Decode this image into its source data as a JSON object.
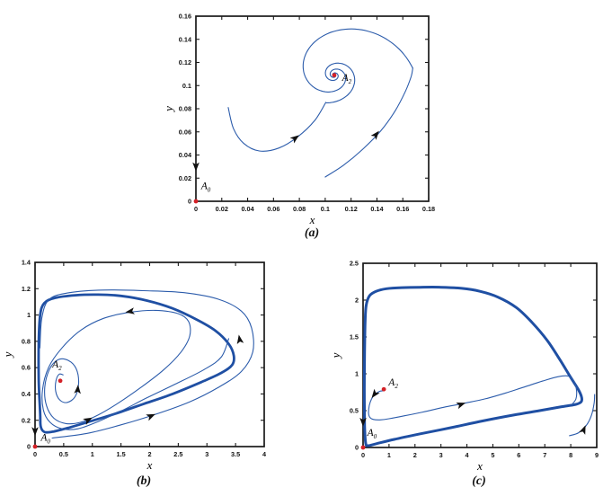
{
  "figure": {
    "background": "#ffffff"
  },
  "colors": {
    "trajectory": "#2c5cab",
    "limit_cycle": "#1f4fa3",
    "axis": "#1a1a1a",
    "tick_text": "#111111",
    "equilibrium_dot": "#d42127",
    "arrow": "#111111"
  },
  "captions": {
    "a": "(a)",
    "b": "(b)",
    "c": "(c)"
  },
  "chart_data": [
    {
      "id": "a",
      "type": "line",
      "caption": "(a)",
      "xlabel": "x",
      "ylabel": "y",
      "xlim": [
        0,
        0.18
      ],
      "ylim": [
        0,
        0.16
      ],
      "xticks": [
        0,
        0.02,
        0.04,
        0.06,
        0.08,
        0.1,
        0.12,
        0.14,
        0.16,
        0.18
      ],
      "xtick_labels": [
        "0",
        "0.02",
        "0.04",
        "0.06",
        "0.08",
        "0.1",
        "0.12",
        "0.14",
        "0.16",
        "0.18"
      ],
      "yticks": [
        0,
        0.02,
        0.04,
        0.06,
        0.08,
        0.1,
        0.12,
        0.14,
        0.16
      ],
      "ytick_labels": [
        "0",
        "0.02",
        "0.04",
        "0.06",
        "0.08",
        "0.1",
        "0.12",
        "0.14",
        "0.16"
      ],
      "equilibria": [
        {
          "label": "A",
          "sub": "2",
          "x": 0.107,
          "y": 0.109,
          "label_x": 0.113,
          "label_y": 0.104
        },
        {
          "label": "A",
          "sub": "0",
          "x": 0,
          "y": 0,
          "label_x": 0.004,
          "label_y": 0.0105
        }
      ],
      "trajectories": [
        {
          "kind": "points",
          "width": 1.1,
          "closed": false,
          "points": [
            [
              0.025,
              0.081
            ],
            [
              0.029,
              0.063
            ],
            [
              0.037,
              0.05
            ],
            [
              0.049,
              0.0435
            ],
            [
              0.064,
              0.046
            ],
            [
              0.079,
              0.056
            ],
            [
              0.092,
              0.07
            ],
            [
              0.1005,
              0.0855
            ]
          ]
        },
        {
          "kind": "spiral",
          "width": 1.1,
          "cx": 0.107,
          "cy": 0.109,
          "r0": 0.0247,
          "r1": 0.0012,
          "th0": -1.82,
          "th1": 9.6
        },
        {
          "kind": "points",
          "width": 1.1,
          "closed": false,
          "points": [
            [
              0.1,
              0.021
            ],
            [
              0.114,
              0.031
            ],
            [
              0.129,
              0.045
            ],
            [
              0.143,
              0.061
            ],
            [
              0.154,
              0.078
            ],
            [
              0.162,
              0.095
            ],
            [
              0.1665,
              0.108
            ],
            [
              0.1677,
              0.115
            ]
          ]
        },
        {
          "kind": "spiral",
          "width": 1.1,
          "cx": 0.107,
          "cy": 0.109,
          "r0": 0.061,
          "r1": 0.0015,
          "th0": 0.1,
          "th1": 11.6
        }
      ],
      "arrows": [
        {
          "x": 0.079,
          "y": 0.0565,
          "angle": 40
        },
        {
          "x": 0.141,
          "y": 0.06,
          "angle": 54
        },
        {
          "x": 0.0,
          "y": 0.027,
          "angle": 270
        }
      ]
    },
    {
      "id": "b",
      "type": "line",
      "caption": "(b)",
      "xlabel": "x",
      "ylabel": "y",
      "xlim": [
        0,
        4
      ],
      "ylim": [
        0,
        1.4
      ],
      "xticks": [
        0,
        0.5,
        1,
        1.5,
        2,
        2.5,
        3,
        3.5,
        4
      ],
      "xtick_labels": [
        "0",
        "0.5",
        "1",
        "1.5",
        "2",
        "2.5",
        "3",
        "3.5",
        "4"
      ],
      "yticks": [
        0,
        0.2,
        0.4,
        0.6,
        0.8,
        1,
        1.2,
        1.4
      ],
      "ytick_labels": [
        "0",
        "0.2",
        "0.4",
        "0.6",
        "0.8",
        "1",
        "1.2",
        "1.4"
      ],
      "equilibria": [
        {
          "label": "A",
          "sub": "2",
          "x": 0.44,
          "y": 0.5,
          "label_x": 0.3,
          "label_y": 0.6
        },
        {
          "label": "A",
          "sub": "0",
          "x": 0,
          "y": 0,
          "label_x": 0.1,
          "label_y": 0.045
        }
      ],
      "trajectories": [
        {
          "kind": "points",
          "width": 2.8,
          "closed": true,
          "points": [
            [
              0.09,
              0.25
            ],
            [
              0.065,
              0.5
            ],
            [
              0.065,
              0.8
            ],
            [
              0.09,
              1.0
            ],
            [
              0.16,
              1.09
            ],
            [
              0.35,
              1.13
            ],
            [
              0.7,
              1.15
            ],
            [
              1.1,
              1.155
            ],
            [
              1.5,
              1.145
            ],
            [
              1.95,
              1.11
            ],
            [
              2.4,
              1.05
            ],
            [
              2.8,
              0.97
            ],
            [
              3.15,
              0.88
            ],
            [
              3.38,
              0.78
            ],
            [
              3.47,
              0.69
            ],
            [
              3.44,
              0.62
            ],
            [
              3.25,
              0.56
            ],
            [
              2.9,
              0.49
            ],
            [
              2.4,
              0.4
            ],
            [
              1.9,
              0.325
            ],
            [
              1.4,
              0.25
            ],
            [
              0.95,
              0.19
            ],
            [
              0.6,
              0.145
            ],
            [
              0.33,
              0.115
            ],
            [
              0.17,
              0.11
            ],
            [
              0.1,
              0.15
            ]
          ]
        },
        {
          "kind": "points",
          "width": 1.1,
          "closed": false,
          "points": [
            [
              0.49,
              0.545
            ],
            [
              0.42,
              0.55
            ],
            [
              0.365,
              0.5
            ],
            [
              0.36,
              0.42
            ],
            [
              0.43,
              0.355
            ],
            [
              0.56,
              0.335
            ],
            [
              0.7,
              0.38
            ],
            [
              0.76,
              0.48
            ],
            [
              0.72,
              0.59
            ],
            [
              0.58,
              0.655
            ],
            [
              0.4,
              0.66
            ],
            [
              0.25,
              0.585
            ],
            [
              0.17,
              0.45
            ],
            [
              0.2,
              0.31
            ],
            [
              0.33,
              0.215
            ],
            [
              0.54,
              0.175
            ],
            [
              0.8,
              0.185
            ],
            [
              1.1,
              0.24
            ],
            [
              1.45,
              0.33
            ],
            [
              1.85,
              0.45
            ],
            [
              2.25,
              0.585
            ],
            [
              2.55,
              0.72
            ],
            [
              2.7,
              0.84
            ],
            [
              2.68,
              0.95
            ],
            [
              2.5,
              1.01
            ],
            [
              2.1,
              1.035
            ],
            [
              1.65,
              1.02
            ],
            [
              1.2,
              0.975
            ],
            [
              0.8,
              0.885
            ],
            [
              0.47,
              0.75
            ],
            [
              0.235,
              0.6
            ],
            [
              0.13,
              0.43
            ],
            [
              0.145,
              0.28
            ],
            [
              0.26,
              0.185
            ],
            [
              0.47,
              0.135
            ],
            [
              0.75,
              0.135
            ],
            [
              1.1,
              0.19
            ],
            [
              1.5,
              0.27
            ],
            [
              1.95,
              0.37
            ],
            [
              2.45,
              0.475
            ],
            [
              2.95,
              0.585
            ],
            [
              3.25,
              0.68
            ],
            [
              3.38,
              0.82
            ]
          ]
        },
        {
          "kind": "points",
          "width": 1.1,
          "closed": false,
          "points": [
            [
              0.3,
              0.065
            ],
            [
              0.9,
              0.1
            ],
            [
              1.5,
              0.165
            ],
            [
              2.1,
              0.245
            ],
            [
              2.7,
              0.34
            ],
            [
              3.2,
              0.45
            ],
            [
              3.6,
              0.57
            ],
            [
              3.8,
              0.72
            ],
            [
              3.78,
              0.9
            ],
            [
              3.6,
              1.03
            ],
            [
              3.2,
              1.12
            ],
            [
              2.6,
              1.17
            ],
            [
              1.9,
              1.185
            ],
            [
              1.2,
              1.19
            ],
            [
              0.6,
              1.17
            ],
            [
              0.25,
              1.12
            ],
            [
              0.12,
              0.98
            ],
            [
              0.085,
              0.75
            ]
          ]
        }
      ],
      "arrows": [
        {
          "x": 1.6,
          "y": 1.022,
          "angle": 184
        },
        {
          "x": 3.56,
          "y": 0.84,
          "angle": 112
        },
        {
          "x": 0.75,
          "y": 0.46,
          "angle": 80
        },
        {
          "x": 0.98,
          "y": 0.215,
          "angle": 13
        },
        {
          "x": 2.08,
          "y": 0.243,
          "angle": 11
        },
        {
          "x": 0.0,
          "y": 0.09,
          "angle": 270
        }
      ]
    },
    {
      "id": "c",
      "type": "line",
      "caption": "(c)",
      "xlabel": "x",
      "ylabel": "y",
      "xlim": [
        0,
        9
      ],
      "ylim": [
        0,
        2.5
      ],
      "xticks": [
        0,
        1,
        2,
        3,
        4,
        5,
        6,
        7,
        8,
        9
      ],
      "xtick_labels": [
        "0",
        "1",
        "2",
        "3",
        "4",
        "5",
        "6",
        "7",
        "8",
        "9"
      ],
      "yticks": [
        0,
        0.5,
        1,
        1.5,
        2,
        2.5
      ],
      "ytick_labels": [
        "0",
        "0.5",
        "1",
        "1.5",
        "2",
        "2.5"
      ],
      "equilibria": [
        {
          "label": "A",
          "sub": "2",
          "x": 0.8,
          "y": 0.79,
          "label_x": 0.98,
          "label_y": 0.84
        },
        {
          "label": "A",
          "sub": "0",
          "x": 0,
          "y": 0,
          "label_x": 0.16,
          "label_y": 0.16
        }
      ],
      "trajectories": [
        {
          "kind": "points",
          "width": 3.0,
          "closed": true,
          "points": [
            [
              0.1,
              0.06
            ],
            [
              0.06,
              0.3
            ],
            [
              0.05,
              0.8
            ],
            [
              0.06,
              1.3
            ],
            [
              0.08,
              1.7
            ],
            [
              0.12,
              1.93
            ],
            [
              0.25,
              2.06
            ],
            [
              0.5,
              2.12
            ],
            [
              0.9,
              2.155
            ],
            [
              1.5,
              2.17
            ],
            [
              2.2,
              2.175
            ],
            [
              3.0,
              2.175
            ],
            [
              3.8,
              2.16
            ],
            [
              4.5,
              2.12
            ],
            [
              5.2,
              2.04
            ],
            [
              5.9,
              1.9
            ],
            [
              6.5,
              1.7
            ],
            [
              7.1,
              1.45
            ],
            [
              7.6,
              1.18
            ],
            [
              8.0,
              0.95
            ],
            [
              8.3,
              0.78
            ],
            [
              8.42,
              0.68
            ],
            [
              8.4,
              0.62
            ],
            [
              8.2,
              0.585
            ],
            [
              7.6,
              0.55
            ],
            [
              6.8,
              0.5
            ],
            [
              5.8,
              0.44
            ],
            [
              4.6,
              0.36
            ],
            [
              3.4,
              0.27
            ],
            [
              2.2,
              0.185
            ],
            [
              1.2,
              0.11
            ],
            [
              0.5,
              0.05
            ],
            [
              0.18,
              0.025
            ]
          ]
        },
        {
          "kind": "points",
          "width": 1.1,
          "closed": false,
          "points": [
            [
              0.78,
              0.77
            ],
            [
              0.62,
              0.76
            ],
            [
              0.45,
              0.72
            ],
            [
              0.33,
              0.66
            ],
            [
              0.24,
              0.57
            ],
            [
              0.21,
              0.47
            ],
            [
              0.26,
              0.41
            ],
            [
              0.4,
              0.38
            ],
            [
              0.65,
              0.375
            ],
            [
              1.0,
              0.39
            ],
            [
              1.6,
              0.43
            ],
            [
              2.3,
              0.48
            ],
            [
              3.1,
              0.545
            ],
            [
              3.9,
              0.6
            ],
            [
              4.7,
              0.66
            ],
            [
              5.5,
              0.74
            ],
            [
              6.2,
              0.82
            ],
            [
              6.9,
              0.9
            ],
            [
              7.5,
              0.96
            ],
            [
              7.9,
              0.97
            ],
            [
              8.12,
              0.9
            ],
            [
              8.22,
              0.78
            ],
            [
              8.2,
              0.66
            ],
            [
              8.05,
              0.585
            ]
          ]
        },
        {
          "kind": "points",
          "width": 1.1,
          "closed": false,
          "points": [
            [
              7.95,
              0.16
            ],
            [
              8.3,
              0.2
            ],
            [
              8.6,
              0.3
            ],
            [
              8.8,
              0.44
            ],
            [
              8.9,
              0.6
            ],
            [
              8.92,
              0.72
            ]
          ]
        }
      ],
      "arrows": [
        {
          "x": 0.36,
          "y": 0.685,
          "angle": 205
        },
        {
          "x": 3.9,
          "y": 0.6,
          "angle": 7
        },
        {
          "x": 8.55,
          "y": 0.285,
          "angle": 40
        },
        {
          "x": 0.0,
          "y": 0.3,
          "angle": 270
        }
      ]
    }
  ]
}
